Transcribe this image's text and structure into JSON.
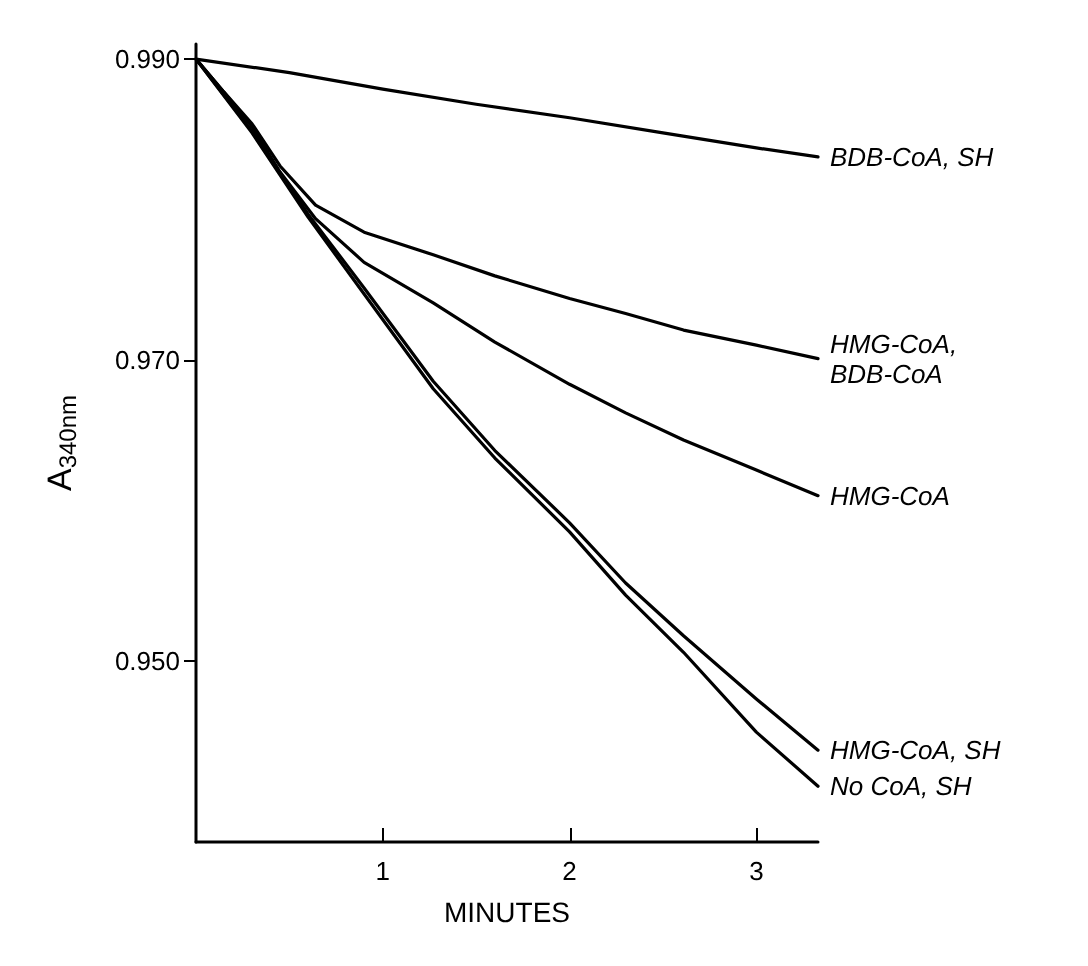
{
  "chart_data": {
    "type": "line",
    "xlabel": "MINUTES",
    "ylabel": "A$_{340nm}$",
    "xlim": [
      0,
      3.33
    ],
    "xticks": [
      1,
      2,
      3
    ],
    "ylim": [
      0.938,
      0.991
    ],
    "yticks": [
      {
        "value": 0.95,
        "label": "0.950"
      },
      {
        "value": 0.97,
        "label": "0.970"
      },
      {
        "value": 0.99,
        "label": "0.990"
      }
    ],
    "grid": false,
    "legend": false,
    "marker": "none",
    "line_style": "solid",
    "series": [
      {
        "name": "BDB-CoA, SH",
        "color": "#000000",
        "x": [
          0,
          0.5,
          1,
          1.5,
          2,
          2.5,
          3,
          3.33
        ],
        "values": [
          0.99,
          0.9891,
          0.988,
          0.987,
          0.9861,
          0.9851,
          0.9841,
          0.9835
        ]
      },
      {
        "name": "HMG-CoA, BDB-CoA",
        "color": "#000000",
        "x": [
          0,
          0.15,
          0.3,
          0.45,
          0.64,
          0.9,
          1.27,
          1.6,
          2,
          2.3,
          2.61,
          3,
          3.33
        ],
        "values": [
          0.99,
          0.9878,
          0.9857,
          0.9829,
          0.9803,
          0.9785,
          0.977,
          0.9756,
          0.9741,
          0.9731,
          0.972,
          0.971,
          0.9701
        ]
      },
      {
        "name": "HMG-CoA",
        "color": "#000000",
        "x": [
          0,
          0.15,
          0.3,
          0.45,
          0.64,
          0.9,
          1.27,
          1.6,
          2,
          2.3,
          2.61,
          3,
          3.33
        ],
        "values": [
          0.99,
          0.9878,
          0.9855,
          0.9825,
          0.9794,
          0.9765,
          0.9738,
          0.9712,
          0.9684,
          0.9665,
          0.9647,
          0.9627,
          0.961
        ]
      },
      {
        "name": "HMG-CoA, SH",
        "color": "#000000",
        "x": [
          0,
          0.3,
          0.6,
          0.9,
          1.27,
          1.6,
          2,
          2.3,
          2.61,
          3,
          3.33
        ],
        "values": [
          0.99,
          0.9852,
          0.9797,
          0.9748,
          0.9686,
          0.964,
          0.9592,
          0.9552,
          0.9517,
          0.9475,
          0.9441
        ]
      },
      {
        "name": "No CoA, SH",
        "color": "#000000",
        "x": [
          0,
          0.3,
          0.6,
          0.9,
          1.27,
          1.6,
          2,
          2.3,
          2.61,
          3,
          3.33
        ],
        "values": [
          0.99,
          0.9851,
          0.9795,
          0.9744,
          0.9681,
          0.9635,
          0.9586,
          0.9544,
          0.9506,
          0.9453,
          0.9417
        ]
      }
    ]
  }
}
